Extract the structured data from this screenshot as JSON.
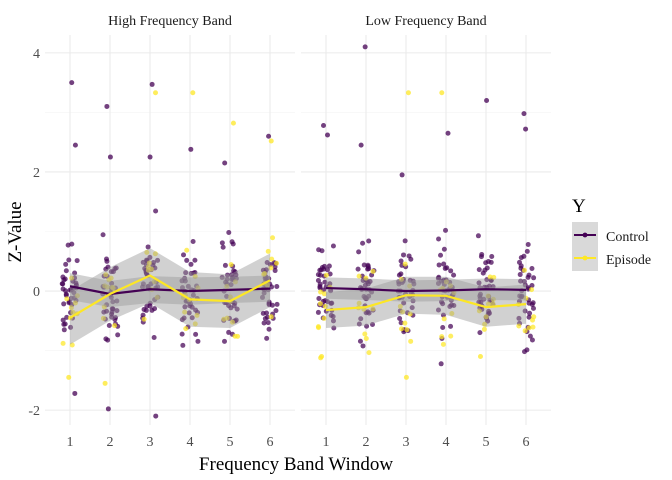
{
  "chart_data": {
    "type": "scatter",
    "xlabel": "Frequency Band Window",
    "ylabel": "Z-Value",
    "x_ticks": [
      "1",
      "2",
      "3",
      "4",
      "5",
      "6"
    ],
    "y_ticks": [
      "-2",
      "0",
      "2",
      "4"
    ],
    "ylim": [
      -2.25,
      4.3
    ],
    "grid": true,
    "legend": {
      "title": "Y",
      "placement": "right",
      "entries": [
        "Control",
        "Episode"
      ]
    },
    "colors": {
      "control": "#440154",
      "episode": "#fde725",
      "ribbon": "#999999",
      "grid_major": "#ebebeb",
      "grid_minor": "#f5f5f5"
    },
    "panels": [
      {
        "title": "High Frequency Band",
        "series": [
          {
            "name": "Control",
            "mean_line": [
              {
                "x": 1,
                "y": 0.08
              },
              {
                "x": 2,
                "y": -0.05
              },
              {
                "x": 3,
                "y": 0.03
              },
              {
                "x": 4,
                "y": 0.0
              },
              {
                "x": 5,
                "y": 0.02
              },
              {
                "x": 6,
                "y": 0.04
              }
            ],
            "ci": [
              [
                -0.15,
                0.3
              ],
              [
                -0.27,
                0.17
              ],
              [
                -0.2,
                0.25
              ],
              [
                -0.23,
                0.23
              ],
              [
                -0.2,
                0.24
              ],
              [
                -0.18,
                0.26
              ]
            ],
            "outliers": [
              {
                "x": 1,
                "y": 3.5
              },
              {
                "x": 1,
                "y": 2.45
              },
              {
                "x": 2,
                "y": 3.1
              },
              {
                "x": 2,
                "y": 2.25
              },
              {
                "x": 3,
                "y": 3.47
              },
              {
                "x": 3,
                "y": 2.25
              },
              {
                "x": 3,
                "y": -2.1
              },
              {
                "x": 4,
                "y": 2.38
              },
              {
                "x": 5,
                "y": 2.15
              },
              {
                "x": 6,
                "y": 2.6
              },
              {
                "x": 2,
                "y": -1.98
              },
              {
                "x": 1,
                "y": -1.72
              }
            ]
          },
          {
            "name": "Episode",
            "mean_line": [
              {
                "x": 1,
                "y": -0.45
              },
              {
                "x": 2,
                "y": -0.05
              },
              {
                "x": 3,
                "y": 0.26
              },
              {
                "x": 4,
                "y": -0.14
              },
              {
                "x": 5,
                "y": -0.17
              },
              {
                "x": 6,
                "y": 0.18
              }
            ],
            "ci": [
              [
                -0.9,
                0.0
              ],
              [
                -0.5,
                0.4
              ],
              [
                -0.2,
                0.72
              ],
              [
                -0.6,
                0.32
              ],
              [
                -0.62,
                0.28
              ],
              [
                -0.27,
                0.63
              ]
            ],
            "outliers": [
              {
                "x": 3,
                "y": 3.33
              },
              {
                "x": 4,
                "y": 3.33
              },
              {
                "x": 5,
                "y": 2.82
              },
              {
                "x": 6,
                "y": 2.52
              },
              {
                "x": 1,
                "y": -1.45
              },
              {
                "x": 2,
                "y": -1.55
              }
            ]
          }
        ]
      },
      {
        "title": "Low Frequency Band",
        "series": [
          {
            "name": "Control",
            "mean_line": [
              {
                "x": 1,
                "y": 0.05
              },
              {
                "x": 2,
                "y": 0.03
              },
              {
                "x": 3,
                "y": 0.0
              },
              {
                "x": 4,
                "y": 0.01
              },
              {
                "x": 5,
                "y": 0.03
              },
              {
                "x": 6,
                "y": 0.02
              }
            ],
            "ci": [
              [
                -0.13,
                0.23
              ],
              [
                -0.15,
                0.21
              ],
              [
                -0.18,
                0.18
              ],
              [
                -0.17,
                0.19
              ],
              [
                -0.15,
                0.21
              ],
              [
                -0.16,
                0.2
              ]
            ],
            "outliers": [
              {
                "x": 2,
                "y": 4.1
              },
              {
                "x": 1,
                "y": 2.78
              },
              {
                "x": 1,
                "y": 2.62
              },
              {
                "x": 2,
                "y": 2.45
              },
              {
                "x": 4,
                "y": 2.65
              },
              {
                "x": 5,
                "y": 3.2
              },
              {
                "x": 6,
                "y": 2.98
              },
              {
                "x": 6,
                "y": 2.72
              },
              {
                "x": 3,
                "y": 1.95
              }
            ]
          },
          {
            "name": "Episode",
            "mean_line": [
              {
                "x": 1,
                "y": -0.32
              },
              {
                "x": 2,
                "y": -0.27
              },
              {
                "x": 3,
                "y": -0.07
              },
              {
                "x": 4,
                "y": -0.08
              },
              {
                "x": 5,
                "y": -0.27
              },
              {
                "x": 6,
                "y": -0.22
              }
            ],
            "ci": [
              [
                -0.62,
                -0.02
              ],
              [
                -0.58,
                0.04
              ],
              [
                -0.38,
                0.24
              ],
              [
                -0.4,
                0.24
              ],
              [
                -0.6,
                0.06
              ],
              [
                -0.55,
                0.11
              ]
            ],
            "outliers": [
              {
                "x": 3,
                "y": 3.33
              },
              {
                "x": 4,
                "y": 3.33
              },
              {
                "x": 3,
                "y": -1.45
              },
              {
                "x": 1,
                "y": -1.1
              },
              {
                "x": 5,
                "y": -1.1
              }
            ]
          }
        ]
      }
    ]
  }
}
